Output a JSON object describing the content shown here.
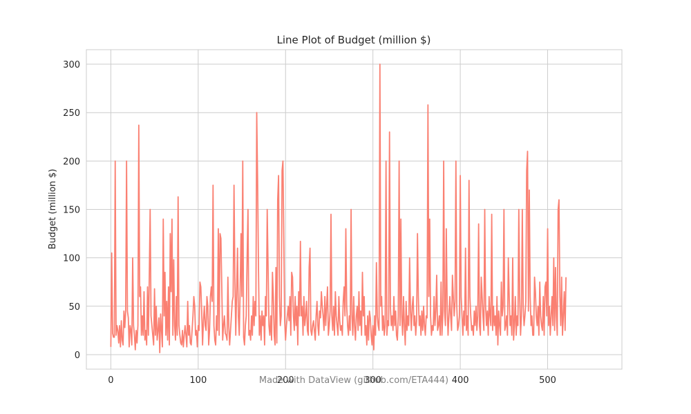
{
  "chart_data": {
    "type": "line",
    "title": "Line Plot of Budget (million $)",
    "xlabel": "",
    "ylabel": "Budget (million $)",
    "xlim": [
      -28,
      585
    ],
    "ylim": [
      -15,
      315
    ],
    "x_ticks": [
      0,
      100,
      200,
      300,
      400,
      500
    ],
    "x_tick_labels": [
      "0",
      "100",
      "200",
      "300",
      "400",
      "500"
    ],
    "y_ticks": [
      0,
      50,
      100,
      150,
      200,
      250,
      300
    ],
    "y_tick_labels": [
      "0",
      "50",
      "100",
      "150",
      "200",
      "250",
      "300"
    ],
    "grid": true,
    "line_color": "#fa8072",
    "series": [
      {
        "x_start": 0,
        "x_step": 1,
        "values": [
          8,
          105,
          22,
          18,
          18,
          200,
          20,
          30,
          25,
          12,
          30,
          8,
          35,
          15,
          10,
          45,
          28,
          45,
          200,
          45,
          38,
          8,
          30,
          25,
          10,
          100,
          30,
          20,
          5,
          25,
          12,
          30,
          237,
          60,
          70,
          20,
          40,
          20,
          65,
          15,
          25,
          10,
          70,
          20,
          80,
          150,
          40,
          30,
          20,
          10,
          68,
          20,
          50,
          15,
          25,
          38,
          2,
          42,
          25,
          8,
          140,
          40,
          85,
          20,
          55,
          15,
          70,
          10,
          125,
          65,
          140,
          20,
          98,
          30,
          15,
          60,
          20,
          163,
          30,
          20,
          12,
          10,
          25,
          8,
          20,
          30,
          20,
          8,
          55,
          20,
          30,
          12,
          10,
          25,
          40,
          60,
          50,
          20,
          25,
          8,
          30,
          25,
          75,
          70,
          45,
          10,
          35,
          50,
          30,
          25,
          60,
          50,
          10,
          25,
          60,
          70,
          55,
          175,
          30,
          15,
          10,
          40,
          25,
          130,
          20,
          125,
          120,
          70,
          15,
          30,
          40,
          22,
          20,
          15,
          80,
          30,
          10,
          25,
          40,
          55,
          60,
          175,
          80,
          20,
          65,
          110,
          40,
          20,
          65,
          125,
          60,
          200,
          18,
          10,
          30,
          40,
          100,
          150,
          20,
          25,
          15,
          40,
          20,
          60,
          30,
          55,
          40,
          250,
          180,
          90,
          20,
          40,
          15,
          45,
          30,
          40,
          10,
          60,
          40,
          150,
          90,
          30,
          20,
          40,
          15,
          85,
          60,
          20,
          10,
          90,
          12,
          160,
          185,
          60,
          30,
          40,
          190,
          200,
          120,
          35,
          15,
          30,
          40,
          50,
          35,
          60,
          20,
          85,
          80,
          40,
          25,
          60,
          30,
          50,
          10,
          65,
          40,
          117,
          40,
          50,
          20,
          60,
          30,
          40,
          55,
          25,
          20,
          90,
          110,
          25,
          20,
          30,
          35,
          25,
          15,
          40,
          55,
          30,
          20,
          45,
          38,
          65,
          50,
          40,
          25,
          60,
          30,
          50,
          70,
          20,
          30,
          45,
          145,
          40,
          25,
          50,
          20,
          65,
          40,
          30,
          20,
          60,
          35,
          25,
          30,
          20,
          55,
          70,
          40,
          130,
          50,
          30,
          20,
          40,
          25,
          150,
          40,
          20,
          60,
          30,
          15,
          40,
          50,
          25,
          65,
          30,
          45,
          20,
          85,
          40,
          60,
          20,
          30,
          10,
          40,
          15,
          45,
          38,
          20,
          10,
          30,
          5,
          40,
          20,
          95,
          40,
          30,
          25,
          300,
          50,
          60,
          25,
          40,
          20,
          30,
          200,
          20,
          35,
          30,
          230,
          50,
          30,
          40,
          25,
          60,
          30,
          45,
          20,
          15,
          40,
          200,
          30,
          140,
          40,
          20,
          60,
          30,
          10,
          55,
          25,
          40,
          30,
          100,
          45,
          25,
          50,
          60,
          30,
          40,
          20,
          35,
          125,
          60,
          30,
          40,
          20,
          45,
          25,
          50,
          30,
          20,
          40,
          38,
          258,
          60,
          140,
          40,
          20,
          30,
          25,
          60,
          30,
          45,
          82,
          25,
          30,
          40,
          20,
          75,
          20,
          40,
          200,
          45,
          30,
          130,
          50,
          20,
          40,
          60,
          40,
          25,
          82,
          60,
          40,
          55,
          200,
          50,
          25,
          30,
          40,
          185,
          60,
          40,
          20,
          45,
          30,
          110,
          25,
          40,
          20,
          180,
          60,
          40,
          25,
          30,
          20,
          45,
          30,
          50,
          25,
          40,
          135,
          30,
          20,
          80,
          60,
          40,
          25,
          150,
          50,
          30,
          45,
          20,
          60,
          40,
          30,
          145,
          25,
          50,
          30,
          40,
          20,
          60,
          10,
          45,
          30,
          20,
          75,
          40,
          50,
          150,
          25,
          30,
          40,
          20,
          100,
          60,
          30,
          40,
          20,
          100,
          15,
          30,
          60,
          20,
          40,
          30,
          150,
          60,
          20,
          40,
          150,
          50,
          30,
          40,
          55,
          190,
          210,
          45,
          170,
          60,
          30,
          40,
          20,
          20,
          80,
          65,
          40,
          30,
          50,
          20,
          75,
          40,
          30,
          25,
          60,
          20,
          70,
          75,
          40,
          130,
          30,
          50,
          20,
          40,
          60,
          30,
          100,
          25,
          90,
          40,
          20,
          150,
          160,
          60,
          30,
          80,
          20,
          40,
          65,
          25,
          80
        ]
      }
    ]
  },
  "watermark": "Made with DataView (github.com/ETA444)"
}
